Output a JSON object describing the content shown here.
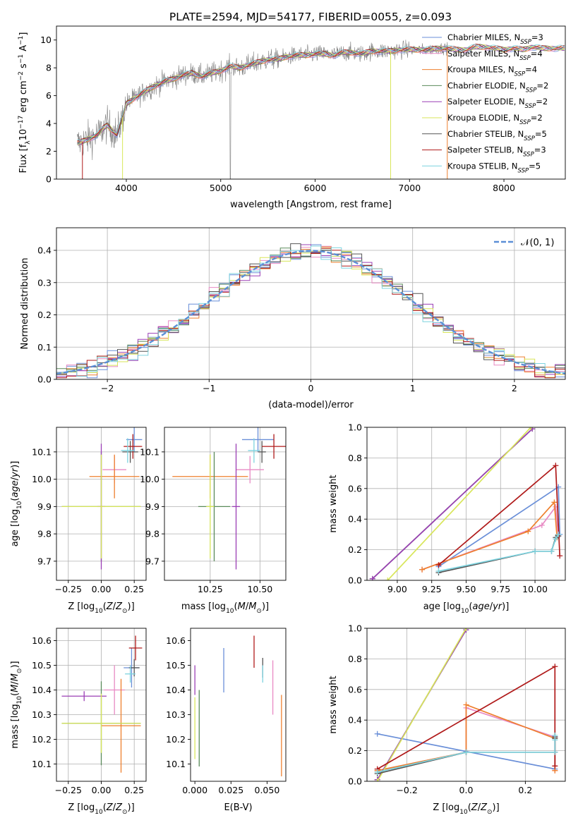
{
  "figure": {
    "title": "PLATE=2594, MJD=54177, FIBERID=0055, z=0.093",
    "colors": {
      "Chabrier MILES": "#6a8fd8",
      "Salpeter MILES": "#e88ac4",
      "Kroupa MILES": "#ee7f2d",
      "Chabrier ELODIE": "#5a8a5a",
      "Salpeter ELODIE": "#9b3fb5",
      "Kroupa ELODIE": "#d8e65a",
      "Chabrier STELIB": "#555555",
      "Salpeter STELIB": "#b01a1a",
      "Kroupa STELIB": "#7dd3df",
      "spectrum": "#808080",
      "normal": "#5b8fd6"
    }
  },
  "chart_data": [
    {
      "id": "spectrum",
      "type": "line",
      "xlabel": "wavelength [Angstrom, rest frame]",
      "ylabel_parts": [
        "Flux [f",
        "λ",
        "10",
        "−17",
        " erg cm",
        "−2",
        " s",
        "−1",
        " A",
        "−1",
        "]"
      ],
      "xlim": [
        3260,
        8650
      ],
      "ylim": [
        0,
        11
      ],
      "xticks": [
        4000,
        5000,
        6000,
        7000,
        8000
      ],
      "yticks": [
        0,
        2,
        4,
        6,
        8,
        10
      ],
      "grid": false,
      "legend_position": "upper-right",
      "legend": [
        {
          "label": "Chabrier MILES, N",
          "sub": "SSP",
          "tail": "=3",
          "model": "Chabrier MILES"
        },
        {
          "label": "Salpeter MILES, N",
          "sub": "SSP",
          "tail": "=4",
          "model": "Salpeter MILES"
        },
        {
          "label": "Kroupa MILES, N",
          "sub": "SSP",
          "tail": "=4",
          "model": "Kroupa MILES"
        },
        {
          "label": "Chabrier ELODIE, N",
          "sub": "SSP",
          "tail": "=2",
          "model": "Chabrier ELODIE"
        },
        {
          "label": "Salpeter ELODIE, N",
          "sub": "SSP",
          "tail": "=2",
          "model": "Salpeter ELODIE"
        },
        {
          "label": "Kroupa ELODIE, N",
          "sub": "SSP",
          "tail": "=2",
          "model": "Kroupa ELODIE"
        },
        {
          "label": "Chabrier STELIB, N",
          "sub": "SSP",
          "tail": "=5",
          "model": "Chabrier STELIB"
        },
        {
          "label": "Salpeter STELIB, N",
          "sub": "SSP",
          "tail": "=3",
          "model": "Salpeter STELIB"
        },
        {
          "label": "Kroupa STELIB, N",
          "sub": "SSP",
          "tail": "=5",
          "model": "Kroupa STELIB"
        }
      ],
      "continuum": {
        "x": [
          3500,
          3600,
          3700,
          3750,
          3800,
          3850,
          3900,
          3950,
          4000,
          4100,
          4200,
          4300,
          4400,
          4500,
          4600,
          4700,
          4800,
          4900,
          5000,
          5100,
          5200,
          5300,
          5400,
          5500,
          5600,
          5700,
          5800,
          5900,
          6000,
          6100,
          6200,
          6300,
          6400,
          6500,
          6600,
          6700,
          6800,
          6900,
          7000,
          7100,
          7200,
          7300,
          7400,
          7500,
          7600,
          7700,
          7800,
          7900,
          8000,
          8100,
          8200,
          8300,
          8400,
          8500,
          8600
        ],
        "y": [
          2.6,
          2.9,
          3.2,
          3.6,
          3.9,
          3.5,
          3.2,
          4.2,
          5.4,
          5.9,
          6.3,
          6.7,
          7.0,
          7.2,
          7.5,
          7.6,
          7.4,
          7.6,
          7.8,
          8.1,
          8.0,
          8.2,
          8.4,
          8.6,
          8.6,
          8.8,
          8.9,
          8.9,
          9.0,
          9.0,
          8.9,
          9.1,
          9.1,
          9.0,
          9.2,
          9.2,
          9.2,
          9.3,
          9.3,
          9.3,
          9.3,
          9.4,
          9.4,
          9.3,
          9.3,
          9.5,
          9.5,
          9.4,
          9.3,
          9.4,
          9.3,
          9.5,
          9.4,
          9.4,
          9.4
        ]
      }
    },
    {
      "id": "residuals",
      "type": "step-histogram",
      "xlabel": "(data-model)/error",
      "ylabel": "Normed distribution",
      "xlim": [
        -2.5,
        2.5
      ],
      "ylim": [
        0,
        0.47
      ],
      "xticks": [
        -2,
        -1,
        0,
        1,
        2
      ],
      "yticks": [
        0.0,
        0.1,
        0.2,
        0.3,
        0.4
      ],
      "grid": true,
      "legend_position": "upper-right",
      "legend_label": "𝒩(0, 1)",
      "bin_width": 0.1,
      "bin_start": -2.5,
      "bins": 50
    },
    {
      "id": "age-vs-Z",
      "type": "errorbar",
      "xlabel": "Z [log10(Z/Z⊙)]",
      "ylabel": "age [log10(age/yr)]",
      "xlim": [
        -0.34,
        0.34
      ],
      "ylim": [
        9.63,
        10.19
      ],
      "xticks": [
        -0.25,
        0.0,
        0.25
      ],
      "yticks": [
        9.7,
        9.8,
        9.9,
        10.0,
        10.1
      ],
      "grid": true,
      "points": [
        {
          "model": "Chabrier MILES",
          "x": 0.25,
          "xerr": 0.06,
          "y": 10.145,
          "yerr": 0.045
        },
        {
          "model": "Salpeter MILES",
          "x": 0.1,
          "xerr": 0.09,
          "y": 10.035,
          "yerr": 0.05
        },
        {
          "model": "Kroupa MILES",
          "x": 0.1,
          "xerr": 0.19,
          "y": 10.01,
          "yerr": 0.08
        },
        {
          "model": "Chabrier ELODIE",
          "x": 0.0,
          "xerr": 0.3,
          "y": 9.9,
          "yerr": 0.2
        },
        {
          "model": "Salpeter ELODIE",
          "x": 0.0,
          "xerr": 0.03,
          "y": 9.9,
          "yerr": 0.23
        },
        {
          "model": "Kroupa ELODIE",
          "x": 0.0,
          "xerr": 0.3,
          "y": 9.9,
          "yerr": 0.19
        },
        {
          "model": "Chabrier STELIB",
          "x": 0.22,
          "xerr": 0.06,
          "y": 10.1,
          "yerr": 0.04
        },
        {
          "model": "Salpeter STELIB",
          "x": 0.24,
          "xerr": 0.07,
          "y": 10.12,
          "yerr": 0.045
        },
        {
          "model": "Kroupa STELIB",
          "x": 0.2,
          "xerr": 0.05,
          "y": 10.105,
          "yerr": 0.045
        }
      ]
    },
    {
      "id": "age-vs-mass",
      "type": "errorbar",
      "xlabel": "mass [log10(M/M⊙)]",
      "xlim": [
        10.02,
        10.63
      ],
      "ylim": [
        9.63,
        10.19
      ],
      "xticks": [
        10.25,
        10.5
      ],
      "yticks": [
        9.7,
        9.8,
        9.9,
        10.0,
        10.1
      ],
      "grid": true,
      "points": [
        {
          "model": "Chabrier MILES",
          "x": 10.49,
          "xerr": 0.08,
          "y": 10.145,
          "yerr": 0.045
        },
        {
          "model": "Salpeter MILES",
          "x": 10.45,
          "xerr": 0.07,
          "y": 10.035,
          "yerr": 0.05
        },
        {
          "model": "Kroupa MILES",
          "x": 10.25,
          "xerr": 0.19,
          "y": 10.01,
          "yerr": 0.08
        },
        {
          "model": "Chabrier ELODIE",
          "x": 10.27,
          "xerr": 0.08,
          "y": 9.9,
          "yerr": 0.2
        },
        {
          "model": "Salpeter ELODIE",
          "x": 10.38,
          "xerr": 0.02,
          "y": 9.9,
          "yerr": 0.23
        },
        {
          "model": "Kroupa ELODIE",
          "x": 10.25,
          "xerr": 0.02,
          "y": 9.9,
          "yerr": 0.19
        },
        {
          "model": "Chabrier STELIB",
          "x": 10.51,
          "xerr": 0.02,
          "y": 10.1,
          "yerr": 0.04
        },
        {
          "model": "Salpeter STELIB",
          "x": 10.57,
          "xerr": 0.06,
          "y": 10.12,
          "yerr": 0.045
        },
        {
          "model": "Kroupa STELIB",
          "x": 10.47,
          "xerr": 0.03,
          "y": 10.105,
          "yerr": 0.045
        }
      ]
    },
    {
      "id": "weight-vs-age",
      "type": "line",
      "xlabel": "age [log10(age/yr)]",
      "ylabel": "mass weight",
      "xlim": [
        8.78,
        10.22
      ],
      "ylim": [
        0,
        1
      ],
      "xticks": [
        9.0,
        9.25,
        9.5,
        9.75,
        10.0
      ],
      "yticks": [
        0.0,
        0.2,
        0.4,
        0.6,
        0.8,
        1.0
      ],
      "grid": true,
      "series": [
        {
          "model": "Chabrier MILES",
          "x": [
            9.3,
            10.17,
            10.18
          ],
          "y": [
            0.09,
            0.61,
            0.3
          ]
        },
        {
          "model": "Salpeter MILES",
          "x": [
            9.18,
            10.05,
            10.15,
            10.17
          ],
          "y": [
            0.07,
            0.36,
            0.48,
            0.29
          ]
        },
        {
          "model": "Kroupa MILES",
          "x": [
            9.18,
            9.95,
            10.14,
            10.16
          ],
          "y": [
            0.07,
            0.32,
            0.51,
            0.28
          ]
        },
        {
          "model": "Chabrier ELODIE",
          "x": [
            8.82,
            9.98
          ],
          "y": [
            0.01,
            0.99
          ]
        },
        {
          "model": "Salpeter ELODIE",
          "x": [
            8.82,
            9.98
          ],
          "y": [
            0.01,
            0.99
          ]
        },
        {
          "model": "Kroupa ELODIE",
          "x": [
            8.93,
            9.97
          ],
          "y": [
            0.0,
            1.0
          ]
        },
        {
          "model": "Chabrier STELIB",
          "x": [
            9.3,
            10.0,
            10.12,
            10.15,
            10.17
          ],
          "y": [
            0.05,
            0.19,
            0.19,
            0.28,
            0.29
          ]
        },
        {
          "model": "Salpeter STELIB",
          "x": [
            9.3,
            10.15,
            10.18
          ],
          "y": [
            0.1,
            0.75,
            0.16
          ]
        },
        {
          "model": "Kroupa STELIB",
          "x": [
            9.3,
            10.0,
            10.12,
            10.15,
            10.17
          ],
          "y": [
            0.06,
            0.19,
            0.19,
            0.27,
            0.3
          ]
        }
      ]
    },
    {
      "id": "mass-vs-Z",
      "type": "errorbar",
      "xlabel": "Z [log10(Z/Z⊙)]",
      "ylabel": "mass [log10(M/M⊙)]",
      "xlim": [
        -0.34,
        0.34
      ],
      "ylim": [
        10.03,
        10.65
      ],
      "xticks": [
        -0.25,
        0.0,
        0.25
      ],
      "yticks": [
        10.1,
        10.2,
        10.3,
        10.4,
        10.5,
        10.6
      ],
      "grid": true,
      "points": [
        {
          "model": "Chabrier MILES",
          "x": 0.23,
          "xerr": 0.06,
          "y": 10.49,
          "yerr": 0.08
        },
        {
          "model": "Salpeter MILES",
          "x": 0.1,
          "xerr": 0.08,
          "y": 10.4,
          "yerr": 0.1
        },
        {
          "model": "Kroupa MILES",
          "x": 0.15,
          "xerr": 0.15,
          "y": 10.255,
          "yerr": 0.19
        },
        {
          "model": "Chabrier ELODIE",
          "x": 0.0,
          "xerr": 0.3,
          "y": 10.265,
          "yerr": 0.17
        },
        {
          "model": "Salpeter ELODIE",
          "x": -0.13,
          "xerr": 0.17,
          "y": 10.375,
          "yerr": 0.02
        },
        {
          "model": "Kroupa ELODIE",
          "x": 0.0,
          "xerr": 0.3,
          "y": 10.265,
          "yerr": 0.12
        },
        {
          "model": "Chabrier STELIB",
          "x": 0.25,
          "xerr": 0.04,
          "y": 10.49,
          "yerr": 0.035
        },
        {
          "model": "Salpeter STELIB",
          "x": 0.26,
          "xerr": 0.05,
          "y": 10.57,
          "yerr": 0.05
        },
        {
          "model": "Kroupa STELIB",
          "x": 0.22,
          "xerr": 0.04,
          "y": 10.465,
          "yerr": 0.035
        }
      ]
    },
    {
      "id": "mass-vs-EBV",
      "type": "errorbar",
      "xlabel": "E(B-V)",
      "xlim": [
        -0.003,
        0.063
      ],
      "ylim": [
        10.03,
        10.65
      ],
      "xticks": [
        0.0,
        0.025,
        0.05
      ],
      "xticklabels": [
        "0.000",
        "0.025",
        "0.050"
      ],
      "yticks": [
        10.1,
        10.2,
        10.3,
        10.4,
        10.5,
        10.6
      ],
      "grid": false,
      "points": [
        {
          "model": "Chabrier MILES",
          "x": 0.02,
          "y": 10.48,
          "yerr": 0.09
        },
        {
          "model": "Salpeter MILES",
          "x": 0.054,
          "y": 10.41,
          "yerr": 0.11
        },
        {
          "model": "Kroupa MILES",
          "x": 0.06,
          "y": 10.215,
          "yerr": 0.165
        },
        {
          "model": "Chabrier ELODIE",
          "x": 0.003,
          "y": 10.245,
          "yerr": 0.155
        },
        {
          "model": "Salpeter ELODIE",
          "x": 0.0,
          "y": 10.44,
          "yerr": 0.06
        },
        {
          "model": "Kroupa ELODIE",
          "x": 0.0,
          "y": 10.245,
          "yerr": 0.125
        },
        {
          "model": "Chabrier STELIB",
          "x": 0.047,
          "y": 10.49,
          "yerr": 0.04
        },
        {
          "model": "Salpeter STELIB",
          "x": 0.041,
          "y": 10.555,
          "yerr": 0.065
        },
        {
          "model": "Kroupa STELIB",
          "x": 0.047,
          "y": 10.465,
          "yerr": 0.035
        }
      ]
    },
    {
      "id": "weight-vs-Z",
      "type": "line",
      "xlabel": "Z [log10(Z/Z⊙)]",
      "ylabel": "mass weight",
      "xlim": [
        -0.335,
        0.335
      ],
      "ylim": [
        0,
        1
      ],
      "xticks": [
        -0.2,
        0.0,
        0.2
      ],
      "yticks": [
        0.0,
        0.2,
        0.4,
        0.6,
        0.8,
        1.0
      ],
      "grid": true,
      "series": [
        {
          "model": "Chabrier MILES",
          "x": [
            -0.3,
            0.3,
            0.3
          ],
          "y": [
            0.31,
            0.08,
            0.29
          ]
        },
        {
          "model": "Salpeter MILES",
          "x": [
            -0.3,
            0.0,
            0.0,
            0.3,
            0.3
          ],
          "y": [
            0.07,
            0.19,
            0.48,
            0.29,
            0.07
          ]
        },
        {
          "model": "Kroupa MILES",
          "x": [
            -0.3,
            0.0,
            0.0,
            0.3,
            0.3
          ],
          "y": [
            0.07,
            0.19,
            0.5,
            0.28,
            0.07
          ]
        },
        {
          "model": "Chabrier ELODIE",
          "x": [
            -0.3,
            0.0
          ],
          "y": [
            0.01,
            0.99
          ]
        },
        {
          "model": "Salpeter ELODIE",
          "x": [
            -0.3,
            0.0
          ],
          "y": [
            0.01,
            0.99
          ]
        },
        {
          "model": "Kroupa ELODIE",
          "x": [
            -0.3,
            0.0
          ],
          "y": [
            0.0,
            1.0
          ]
        },
        {
          "model": "Chabrier STELIB",
          "x": [
            -0.3,
            0.0,
            0.3,
            0.3,
            0.3
          ],
          "y": [
            0.05,
            0.19,
            0.19,
            0.28,
            0.29
          ]
        },
        {
          "model": "Salpeter STELIB",
          "x": [
            -0.3,
            0.3,
            0.3
          ],
          "y": [
            0.08,
            0.75,
            0.1
          ]
        },
        {
          "model": "Kroupa STELIB",
          "x": [
            -0.3,
            0.0,
            0.3,
            0.3,
            0.3
          ],
          "y": [
            0.06,
            0.19,
            0.19,
            0.27,
            0.3
          ]
        }
      ]
    }
  ]
}
